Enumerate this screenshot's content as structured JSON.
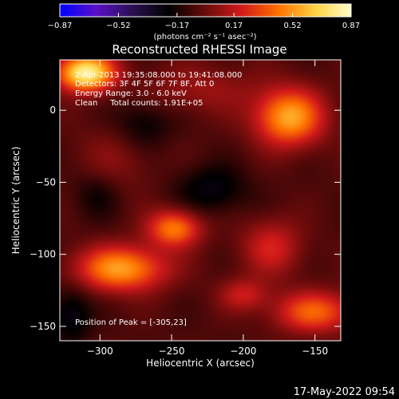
{
  "chart_data": {
    "type": "heatmap",
    "title": "Reconstructed RHESSI Image",
    "xlabel": "Heliocentric X (arcsec)",
    "ylabel": "Heliocentric Y (arcsec)",
    "xlim": [
      -328,
      -132
    ],
    "ylim": [
      -160,
      35
    ],
    "x_ticks": [
      -300,
      -250,
      -200,
      -150
    ],
    "y_ticks": [
      0,
      -50,
      -100,
      -150
    ],
    "colorbar": {
      "min": -0.87,
      "max": 0.87,
      "ticks": [
        -0.87,
        -0.52,
        -0.17,
        0.17,
        0.52,
        0.87
      ],
      "tick_labels": [
        "−0.87",
        "−0.52",
        "−0.17",
        "0.17",
        "0.52",
        "0.87"
      ],
      "unit_label": "(photons cm⁻² s⁻¹ asec⁻²)",
      "colors": [
        "#0000ff",
        "#5b10c8",
        "#2a1050",
        "#000000",
        "#6a0b0b",
        "#d21a1a",
        "#ff7000",
        "#ffd040",
        "#ffffc8"
      ]
    },
    "annotations": [
      "2-Apr-2013 19:35:08.000 to 19:41:08.000",
      "Detectors: 3F 4F 5F 6F 7F 8F, Att 0",
      "Energy Range: 3.0 - 6.0 keV",
      "Clean     Total counts: 1.91E+05"
    ],
    "peak_label": "Position of Peak = [-305,23]",
    "sources": [
      {
        "x": -310,
        "y": 26,
        "sx": 14,
        "sy": 9,
        "amp": 0.87
      },
      {
        "x": -168,
        "y": -5,
        "sx": 17,
        "sy": 14,
        "amp": 0.62
      },
      {
        "x": -285,
        "y": -110,
        "sx": 22,
        "sy": 11,
        "amp": 0.6
      },
      {
        "x": -248,
        "y": -82,
        "sx": 13,
        "sy": 9,
        "amp": 0.52
      },
      {
        "x": -150,
        "y": -140,
        "sx": 20,
        "sy": 10,
        "amp": 0.45
      },
      {
        "x": -180,
        "y": -95,
        "sx": 15,
        "sy": 14,
        "amp": 0.28
      },
      {
        "x": -200,
        "y": -128,
        "sx": 12,
        "sy": 8,
        "amp": 0.25
      },
      {
        "x": -230,
        "y": 15,
        "sx": 28,
        "sy": 12,
        "amp": 0.16
      },
      {
        "x": -290,
        "y": -35,
        "sx": 20,
        "sy": 18,
        "amp": 0.12
      },
      {
        "x": -320,
        "y": -142,
        "sx": 10,
        "sy": 14,
        "amp": -0.22
      },
      {
        "x": -270,
        "y": -10,
        "sx": 14,
        "sy": 12,
        "amp": -0.18
      },
      {
        "x": -222,
        "y": -55,
        "sx": 18,
        "sy": 12,
        "amp": -0.2
      },
      {
        "x": -302,
        "y": -58,
        "sx": 12,
        "sy": 12,
        "amp": -0.15
      }
    ]
  },
  "timestamp": "17-May-2022 09:54"
}
